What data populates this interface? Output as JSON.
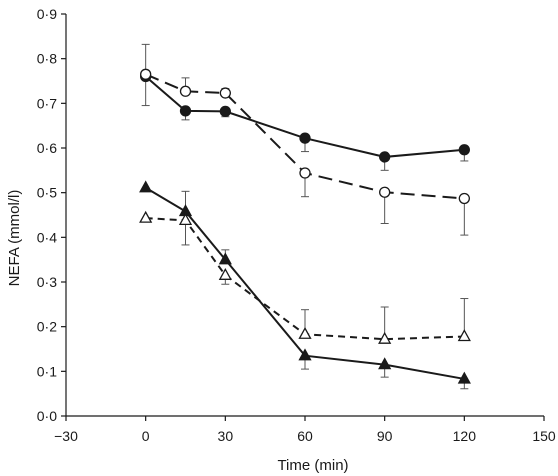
{
  "chart_data": {
    "type": "line",
    "xlabel": "Time (min)",
    "ylabel": "NEFA (mmol/l)",
    "xlim": [
      -30,
      150
    ],
    "ylim": [
      0,
      0.9
    ],
    "x_ticks": [
      -30,
      0,
      30,
      60,
      90,
      120,
      150
    ],
    "x_tick_labels": [
      "−30",
      "0",
      "30",
      "60",
      "90",
      "120",
      "150"
    ],
    "y_ticks": [
      0,
      0.1,
      0.2,
      0.3,
      0.4,
      0.5,
      0.6,
      0.7,
      0.8,
      0.9
    ],
    "y_tick_labels": [
      "0·0",
      "0·1",
      "0·2",
      "0·3",
      "0·4",
      "0·5",
      "0·6",
      "0·7",
      "0·8",
      "0·9"
    ],
    "grid": false,
    "legend": "none",
    "series": [
      {
        "marker": "filled-circle",
        "line_style": "solid",
        "color": "#1a1a1a",
        "x": [
          0,
          15,
          30,
          60,
          90,
          120
        ],
        "values": [
          0.76,
          0.683,
          0.682,
          0.622,
          0.58,
          0.596
        ],
        "error_direction": "down",
        "errors": [
          0.065,
          0.02,
          0.012,
          0.03,
          0.03,
          0.025
        ]
      },
      {
        "marker": "open-circle",
        "line_style": "dashed",
        "color": "#1a1a1a",
        "x": [
          0,
          15,
          30,
          60,
          90,
          120
        ],
        "values": [
          0.765,
          0.727,
          0.723,
          0.544,
          0.501,
          0.487
        ],
        "error_direction": "up",
        "errors": [
          0.067,
          0.03,
          0.01,
          0.053,
          0.07,
          0.082
        ],
        "error_direction_override": {
          "3": "down",
          "4": "down",
          "5": "down"
        }
      },
      {
        "marker": "filled-triangle",
        "line_style": "solid",
        "color": "#1a1a1a",
        "x": [
          0,
          15,
          30,
          60,
          90,
          120
        ],
        "values": [
          0.511,
          0.458,
          0.35,
          0.135,
          0.115,
          0.083
        ],
        "error_direction": "up",
        "errors": [
          0.0,
          0.045,
          0.022,
          0.03,
          0.028,
          0.022
        ],
        "error_direction_override": {
          "3": "down",
          "4": "down",
          "5": "down"
        }
      },
      {
        "marker": "open-triangle",
        "line_style": "dashed",
        "color": "#1a1a1a",
        "x": [
          0,
          15,
          30,
          60,
          90,
          120
        ],
        "values": [
          0.443,
          0.438,
          0.315,
          0.183,
          0.172,
          0.178
        ],
        "error_direction": "down",
        "errors": [
          0.0,
          0.055,
          0.02,
          0.055,
          0.072,
          0.085
        ],
        "error_direction_override": {
          "3": "up",
          "4": "up",
          "5": "up"
        }
      }
    ]
  }
}
